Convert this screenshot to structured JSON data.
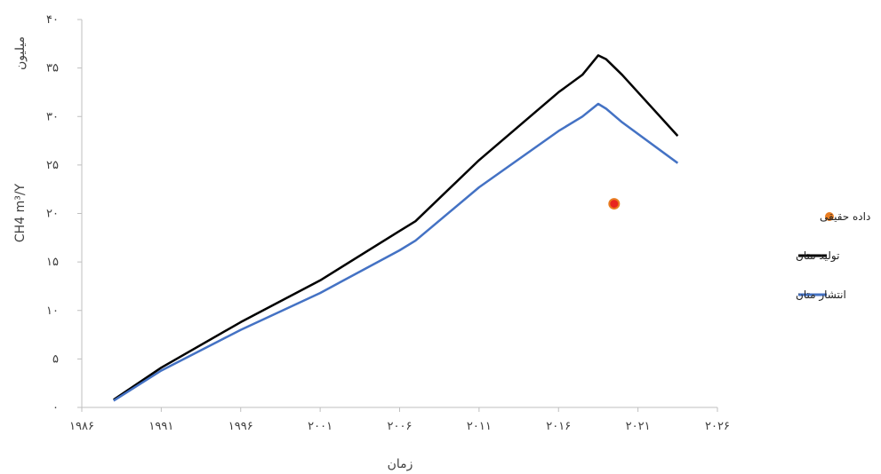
{
  "chart_data": {
    "type": "line",
    "title": "",
    "xlabel": "زمان",
    "ylabel": "CH4 m³/Y",
    "yunit": "میلیون",
    "xlim": [
      1986,
      2026
    ],
    "ylim": [
      0,
      40
    ],
    "xticks": [
      1986,
      1991,
      1996,
      2001,
      2006,
      2011,
      2016,
      2021,
      2026
    ],
    "xtick_labels": [
      "۱۹۸۶",
      "۱۹۹۱",
      "۱۹۹۶",
      "۲۰۰۱",
      "۲۰۰۶",
      "۲۰۱۱",
      "۲۰۱۶",
      "۲۰۲۱",
      "۲۰۲۶"
    ],
    "yticks": [
      0,
      5,
      10,
      15,
      20,
      25,
      30,
      35,
      40
    ],
    "ytick_labels": [
      "۰",
      "۵",
      "۱۰",
      "۱۵",
      "۲۰",
      "۲۵",
      "۳۰",
      "۳۵",
      "۴۰"
    ],
    "grid": false,
    "legend_position": "right",
    "series": [
      {
        "name": "تولید متان",
        "kind": "line",
        "color": "#000000",
        "x": [
          1988,
          1991,
          1996,
          2001,
          2006,
          2007,
          2011,
          2016,
          2017.5,
          2018.5,
          2019,
          2020,
          2023.5
        ],
        "y": [
          0.8,
          4.1,
          8.8,
          13.1,
          18.2,
          19.2,
          25.5,
          32.5,
          34.3,
          36.3,
          35.9,
          34.3,
          28.0
        ]
      },
      {
        "name": "انتشار متان",
        "kind": "line",
        "color": "#4472c4",
        "x": [
          1988,
          1991,
          1996,
          2001,
          2006,
          2007,
          2011,
          2016,
          2017.5,
          2018.5,
          2019,
          2020,
          2023.5
        ],
        "y": [
          0.7,
          3.8,
          8.0,
          11.8,
          16.2,
          17.2,
          22.7,
          28.5,
          30.0,
          31.3,
          30.8,
          29.4,
          25.2
        ]
      },
      {
        "name": "داده حقیقی",
        "kind": "scatter",
        "color": "#e87d22",
        "x": [
          2019.5
        ],
        "y": [
          21.0
        ]
      }
    ]
  }
}
